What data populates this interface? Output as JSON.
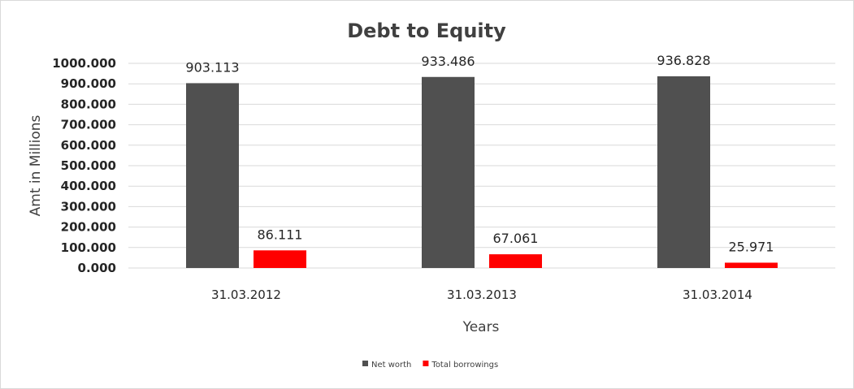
{
  "chart_data": {
    "type": "bar",
    "title": "Debt to Equity",
    "xlabel": "Years",
    "ylabel": "Amt in Millions",
    "categories": [
      "31.03.2012",
      "31.03.2013",
      "31.03.2014"
    ],
    "series": [
      {
        "name": "Net worth",
        "values": [
          903.113,
          933.486,
          936.828
        ],
        "color": "#505050"
      },
      {
        "name": "Total borrowings",
        "values": [
          86.111,
          67.061,
          25.971
        ],
        "color": "#ff0000"
      }
    ],
    "value_labels": [
      [
        "903.113",
        "933.486",
        "936.828"
      ],
      [
        "86.111",
        "67.061",
        "25.971"
      ]
    ],
    "ylim": [
      0,
      1000
    ],
    "yticks": [
      "0.000",
      "100.000",
      "200.000",
      "300.000",
      "400.000",
      "500.000",
      "600.000",
      "700.000",
      "800.000",
      "900.000",
      "1000.000"
    ],
    "grid": true,
    "gridline_color": "#d9d9d9",
    "legend": "bottom-center"
  }
}
